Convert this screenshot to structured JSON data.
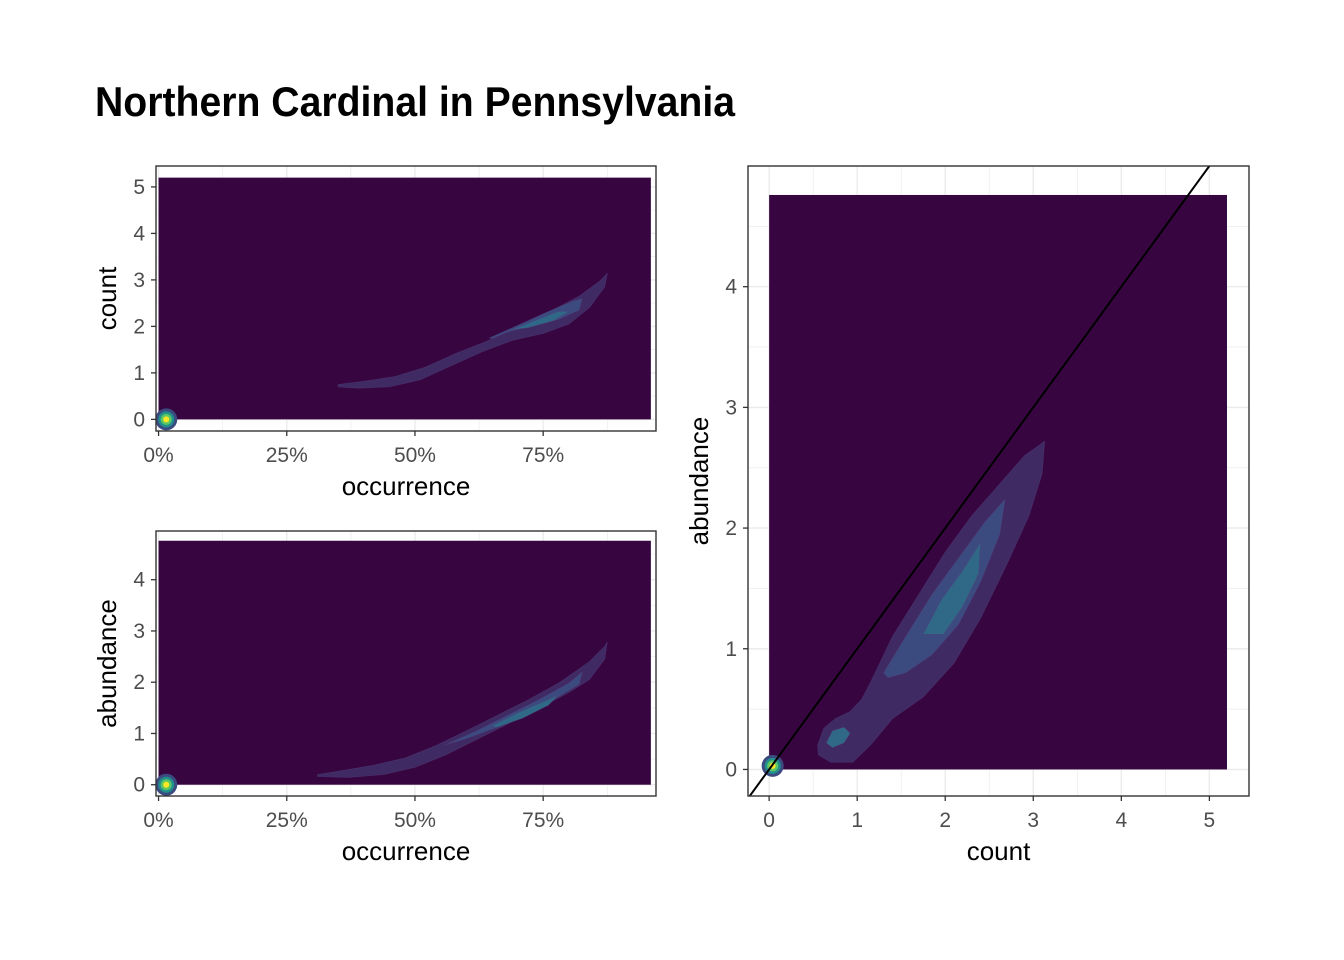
{
  "title": "Northern Cardinal in Pennsylvania",
  "colors": {
    "fill_base": "#370641",
    "contour_1": "#3f2a63",
    "contour_2": "#3b4b80",
    "contour_3": "#2f6987",
    "hot_1": "#21908c",
    "hot_2": "#5dc863",
    "hot_3": "#fde725",
    "grid": "#ebebeb",
    "frame": "#333333",
    "axis_text": "#4d4d4d",
    "identity_line": "#000000"
  },
  "chart_data": [
    {
      "type": "density2d",
      "panel": "top-left",
      "xlabel": "occurrence",
      "ylabel": "count",
      "x_ticks": [
        "0%",
        "25%",
        "50%",
        "75%"
      ],
      "x_tick_values": [
        0,
        0.25,
        0.5,
        0.75
      ],
      "y_ticks": [
        "0",
        "1",
        "2",
        "3",
        "4",
        "5"
      ],
      "y_tick_values": [
        0,
        1,
        2,
        3,
        4,
        5
      ],
      "xlim": [
        -0.005,
        0.97
      ],
      "ylim": [
        -0.25,
        5.45
      ],
      "fill_extent": {
        "x": [
          0,
          0.96
        ],
        "y": [
          0,
          5.2
        ]
      },
      "contours": [
        {
          "level": 1,
          "points": [
            [
              0.35,
              0.75
            ],
            [
              0.4,
              0.82
            ],
            [
              0.46,
              0.92
            ],
            [
              0.52,
              1.12
            ],
            [
              0.58,
              1.42
            ],
            [
              0.64,
              1.68
            ],
            [
              0.7,
              2.0
            ],
            [
              0.76,
              2.3
            ],
            [
              0.82,
              2.65
            ],
            [
              0.86,
              2.97
            ],
            [
              0.875,
              3.14
            ],
            [
              0.87,
              2.85
            ],
            [
              0.84,
              2.4
            ],
            [
              0.8,
              2.05
            ],
            [
              0.75,
              1.85
            ],
            [
              0.69,
              1.7
            ],
            [
              0.63,
              1.45
            ],
            [
              0.57,
              1.15
            ],
            [
              0.51,
              0.85
            ],
            [
              0.45,
              0.7
            ],
            [
              0.39,
              0.67
            ],
            [
              0.35,
              0.7
            ]
          ]
        },
        {
          "level": 2,
          "points": [
            [
              0.645,
              1.75
            ],
            [
              0.7,
              2.02
            ],
            [
              0.76,
              2.32
            ],
            [
              0.81,
              2.55
            ],
            [
              0.826,
              2.6
            ],
            [
              0.82,
              2.35
            ],
            [
              0.78,
              2.15
            ],
            [
              0.73,
              2.02
            ],
            [
              0.68,
              1.88
            ],
            [
              0.65,
              1.74
            ]
          ]
        },
        {
          "level": 3,
          "points": [
            [
              0.69,
              1.93
            ],
            [
              0.74,
              2.15
            ],
            [
              0.78,
              2.32
            ],
            [
              0.8,
              2.32
            ],
            [
              0.77,
              2.12
            ],
            [
              0.72,
              1.97
            ]
          ]
        }
      ],
      "hotspot": {
        "x": 0.015,
        "y": 0
      }
    },
    {
      "type": "density2d",
      "panel": "bottom-left",
      "xlabel": "occurrence",
      "ylabel": "abundance",
      "x_ticks": [
        "0%",
        "25%",
        "50%",
        "75%"
      ],
      "x_tick_values": [
        0,
        0.25,
        0.5,
        0.75
      ],
      "y_ticks": [
        "0",
        "1",
        "2",
        "3",
        "4"
      ],
      "y_tick_values": [
        0,
        1,
        2,
        3,
        4
      ],
      "xlim": [
        -0.005,
        0.97
      ],
      "ylim": [
        -0.22,
        4.95
      ],
      "fill_extent": {
        "x": [
          0,
          0.96
        ],
        "y": [
          0,
          4.76
        ]
      },
      "contours": [
        {
          "level": 1,
          "points": [
            [
              0.31,
              0.2
            ],
            [
              0.36,
              0.28
            ],
            [
              0.42,
              0.38
            ],
            [
              0.48,
              0.52
            ],
            [
              0.54,
              0.76
            ],
            [
              0.6,
              1.05
            ],
            [
              0.66,
              1.35
            ],
            [
              0.72,
              1.65
            ],
            [
              0.78,
              1.98
            ],
            [
              0.84,
              2.4
            ],
            [
              0.87,
              2.7
            ],
            [
              0.875,
              2.78
            ],
            [
              0.87,
              2.45
            ],
            [
              0.84,
              2.05
            ],
            [
              0.8,
              1.8
            ],
            [
              0.74,
              1.48
            ],
            [
              0.68,
              1.18
            ],
            [
              0.62,
              0.88
            ],
            [
              0.56,
              0.58
            ],
            [
              0.5,
              0.34
            ],
            [
              0.44,
              0.2
            ],
            [
              0.37,
              0.14
            ],
            [
              0.31,
              0.16
            ]
          ]
        },
        {
          "level": 2,
          "points": [
            [
              0.56,
              0.78
            ],
            [
              0.62,
              1.05
            ],
            [
              0.68,
              1.35
            ],
            [
              0.74,
              1.65
            ],
            [
              0.8,
              1.98
            ],
            [
              0.826,
              2.2
            ],
            [
              0.82,
              1.96
            ],
            [
              0.78,
              1.72
            ],
            [
              0.72,
              1.4
            ],
            [
              0.66,
              1.12
            ],
            [
              0.6,
              0.9
            ],
            [
              0.56,
              0.78
            ]
          ]
        },
        {
          "level": 3,
          "points": [
            [
              0.65,
              1.15
            ],
            [
              0.7,
              1.4
            ],
            [
              0.75,
              1.62
            ],
            [
              0.78,
              1.75
            ],
            [
              0.76,
              1.55
            ],
            [
              0.71,
              1.3
            ],
            [
              0.66,
              1.12
            ]
          ]
        }
      ],
      "hotspot": {
        "x": 0.015,
        "y": 0
      }
    },
    {
      "type": "density2d",
      "panel": "right",
      "xlabel": "count",
      "ylabel": "abundance",
      "x_ticks": [
        "0",
        "1",
        "2",
        "3",
        "4",
        "5"
      ],
      "x_tick_values": [
        0,
        1,
        2,
        3,
        4,
        5
      ],
      "y_ticks": [
        "0",
        "1",
        "2",
        "3",
        "4"
      ],
      "y_tick_values": [
        0,
        1,
        2,
        3,
        4
      ],
      "xlim": [
        -0.24,
        5.45
      ],
      "ylim": [
        -0.22,
        5.0
      ],
      "fill_extent": {
        "x": [
          0,
          5.2
        ],
        "y": [
          0,
          4.76
        ]
      },
      "reference_line": {
        "slope": 1,
        "intercept": 0
      },
      "contours": [
        {
          "level": 1,
          "points": [
            [
              0.55,
              0.2
            ],
            [
              0.62,
              0.34
            ],
            [
              0.75,
              0.42
            ],
            [
              0.92,
              0.48
            ],
            [
              1.05,
              0.58
            ],
            [
              1.15,
              0.72
            ],
            [
              1.4,
              1.1
            ],
            [
              1.7,
              1.45
            ],
            [
              2.0,
              1.8
            ],
            [
              2.3,
              2.1
            ],
            [
              2.6,
              2.35
            ],
            [
              2.9,
              2.6
            ],
            [
              3.13,
              2.72
            ],
            [
              3.1,
              2.45
            ],
            [
              2.95,
              2.1
            ],
            [
              2.7,
              1.7
            ],
            [
              2.4,
              1.25
            ],
            [
              2.1,
              0.88
            ],
            [
              1.75,
              0.6
            ],
            [
              1.4,
              0.42
            ],
            [
              1.15,
              0.2
            ],
            [
              0.95,
              0.06
            ],
            [
              0.7,
              0.06
            ],
            [
              0.56,
              0.12
            ]
          ]
        },
        {
          "level": 2,
          "points": [
            [
              1.3,
              0.8
            ],
            [
              1.55,
              1.1
            ],
            [
              1.85,
              1.45
            ],
            [
              2.15,
              1.75
            ],
            [
              2.45,
              2.05
            ],
            [
              2.68,
              2.24
            ],
            [
              2.62,
              1.95
            ],
            [
              2.4,
              1.55
            ],
            [
              2.15,
              1.2
            ],
            [
              1.85,
              0.95
            ],
            [
              1.55,
              0.8
            ],
            [
              1.35,
              0.76
            ]
          ]
        },
        {
          "level": 3,
          "points": [
            [
              1.75,
              1.12
            ],
            [
              1.95,
              1.4
            ],
            [
              2.2,
              1.65
            ],
            [
              2.4,
              1.88
            ],
            [
              2.38,
              1.62
            ],
            [
              2.2,
              1.35
            ],
            [
              1.98,
              1.12
            ]
          ]
        },
        {
          "level": 3,
          "points": [
            [
              0.65,
              0.22
            ],
            [
              0.72,
              0.32
            ],
            [
              0.85,
              0.35
            ],
            [
              0.92,
              0.3
            ],
            [
              0.85,
              0.22
            ],
            [
              0.72,
              0.18
            ]
          ]
        }
      ],
      "hotspot": {
        "x": 0.04,
        "y": 0.03
      }
    }
  ]
}
